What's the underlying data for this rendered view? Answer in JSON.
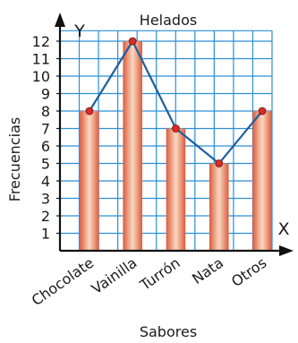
{
  "chart_data": {
    "type": "bar",
    "overlay": "line",
    "title": "Helados",
    "xlabel": "Sabores",
    "ylabel": "Frecuencias",
    "x_axis_letter": "X",
    "y_axis_letter": "Y",
    "categories": [
      "Chocolate",
      "Vainilla",
      "Turrón",
      "Nata",
      "Otros"
    ],
    "values": [
      8,
      12,
      7,
      5,
      8
    ],
    "yticks": [
      "1",
      "2",
      "3",
      "4",
      "5",
      "6",
      "7",
      "8",
      "9",
      "10",
      "11",
      "12"
    ],
    "ylim": [
      0,
      12
    ],
    "grid": true,
    "colors": {
      "grid": "#2a8fd6",
      "bar_edge": "#c0392b",
      "bar_center": "#f5c6a8",
      "bar_mid": "#ea8e72",
      "line": "#1f5f9e",
      "point": "#d62d27",
      "axis": "#111111"
    }
  }
}
